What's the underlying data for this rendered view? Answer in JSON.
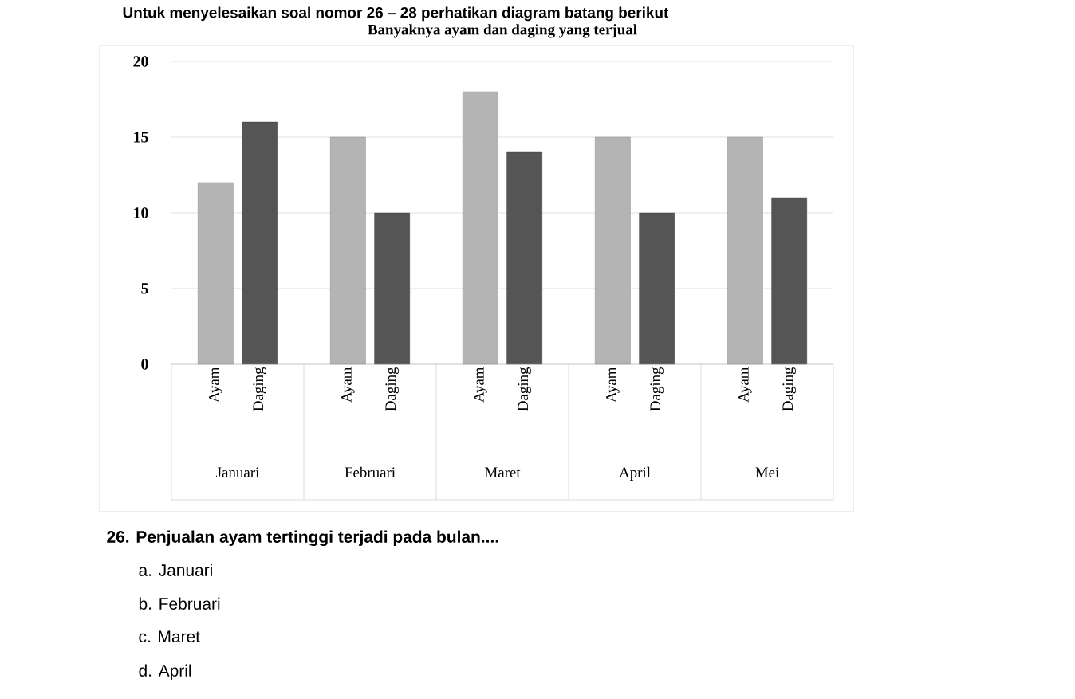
{
  "chart_data": {
    "type": "bar",
    "title": "Untuk menyelesaikan soal nomor 26 – 28 perhatikan diagram batang berikut",
    "subtitle": "Banyaknya ayam dan daging yang terjual",
    "categories": [
      "Januari",
      "Februari",
      "Maret",
      "April",
      "Mei"
    ],
    "series": [
      {
        "name": "Ayam",
        "color": "#b4b4b4",
        "values": [
          12,
          15,
          18,
          15,
          15
        ]
      },
      {
        "name": "Daging",
        "color": "#555555",
        "values": [
          16,
          10,
          14,
          10,
          11
        ]
      }
    ],
    "ylim": [
      0,
      20
    ],
    "yticks": [
      0,
      5,
      10,
      15,
      20
    ],
    "grid": "y",
    "annotations": [
      "26. Penjualan ayam tertinggi terjadi pada bulan....",
      "a.  Januari",
      "b.  Februari",
      "c.  Maret",
      "d.  April"
    ]
  }
}
